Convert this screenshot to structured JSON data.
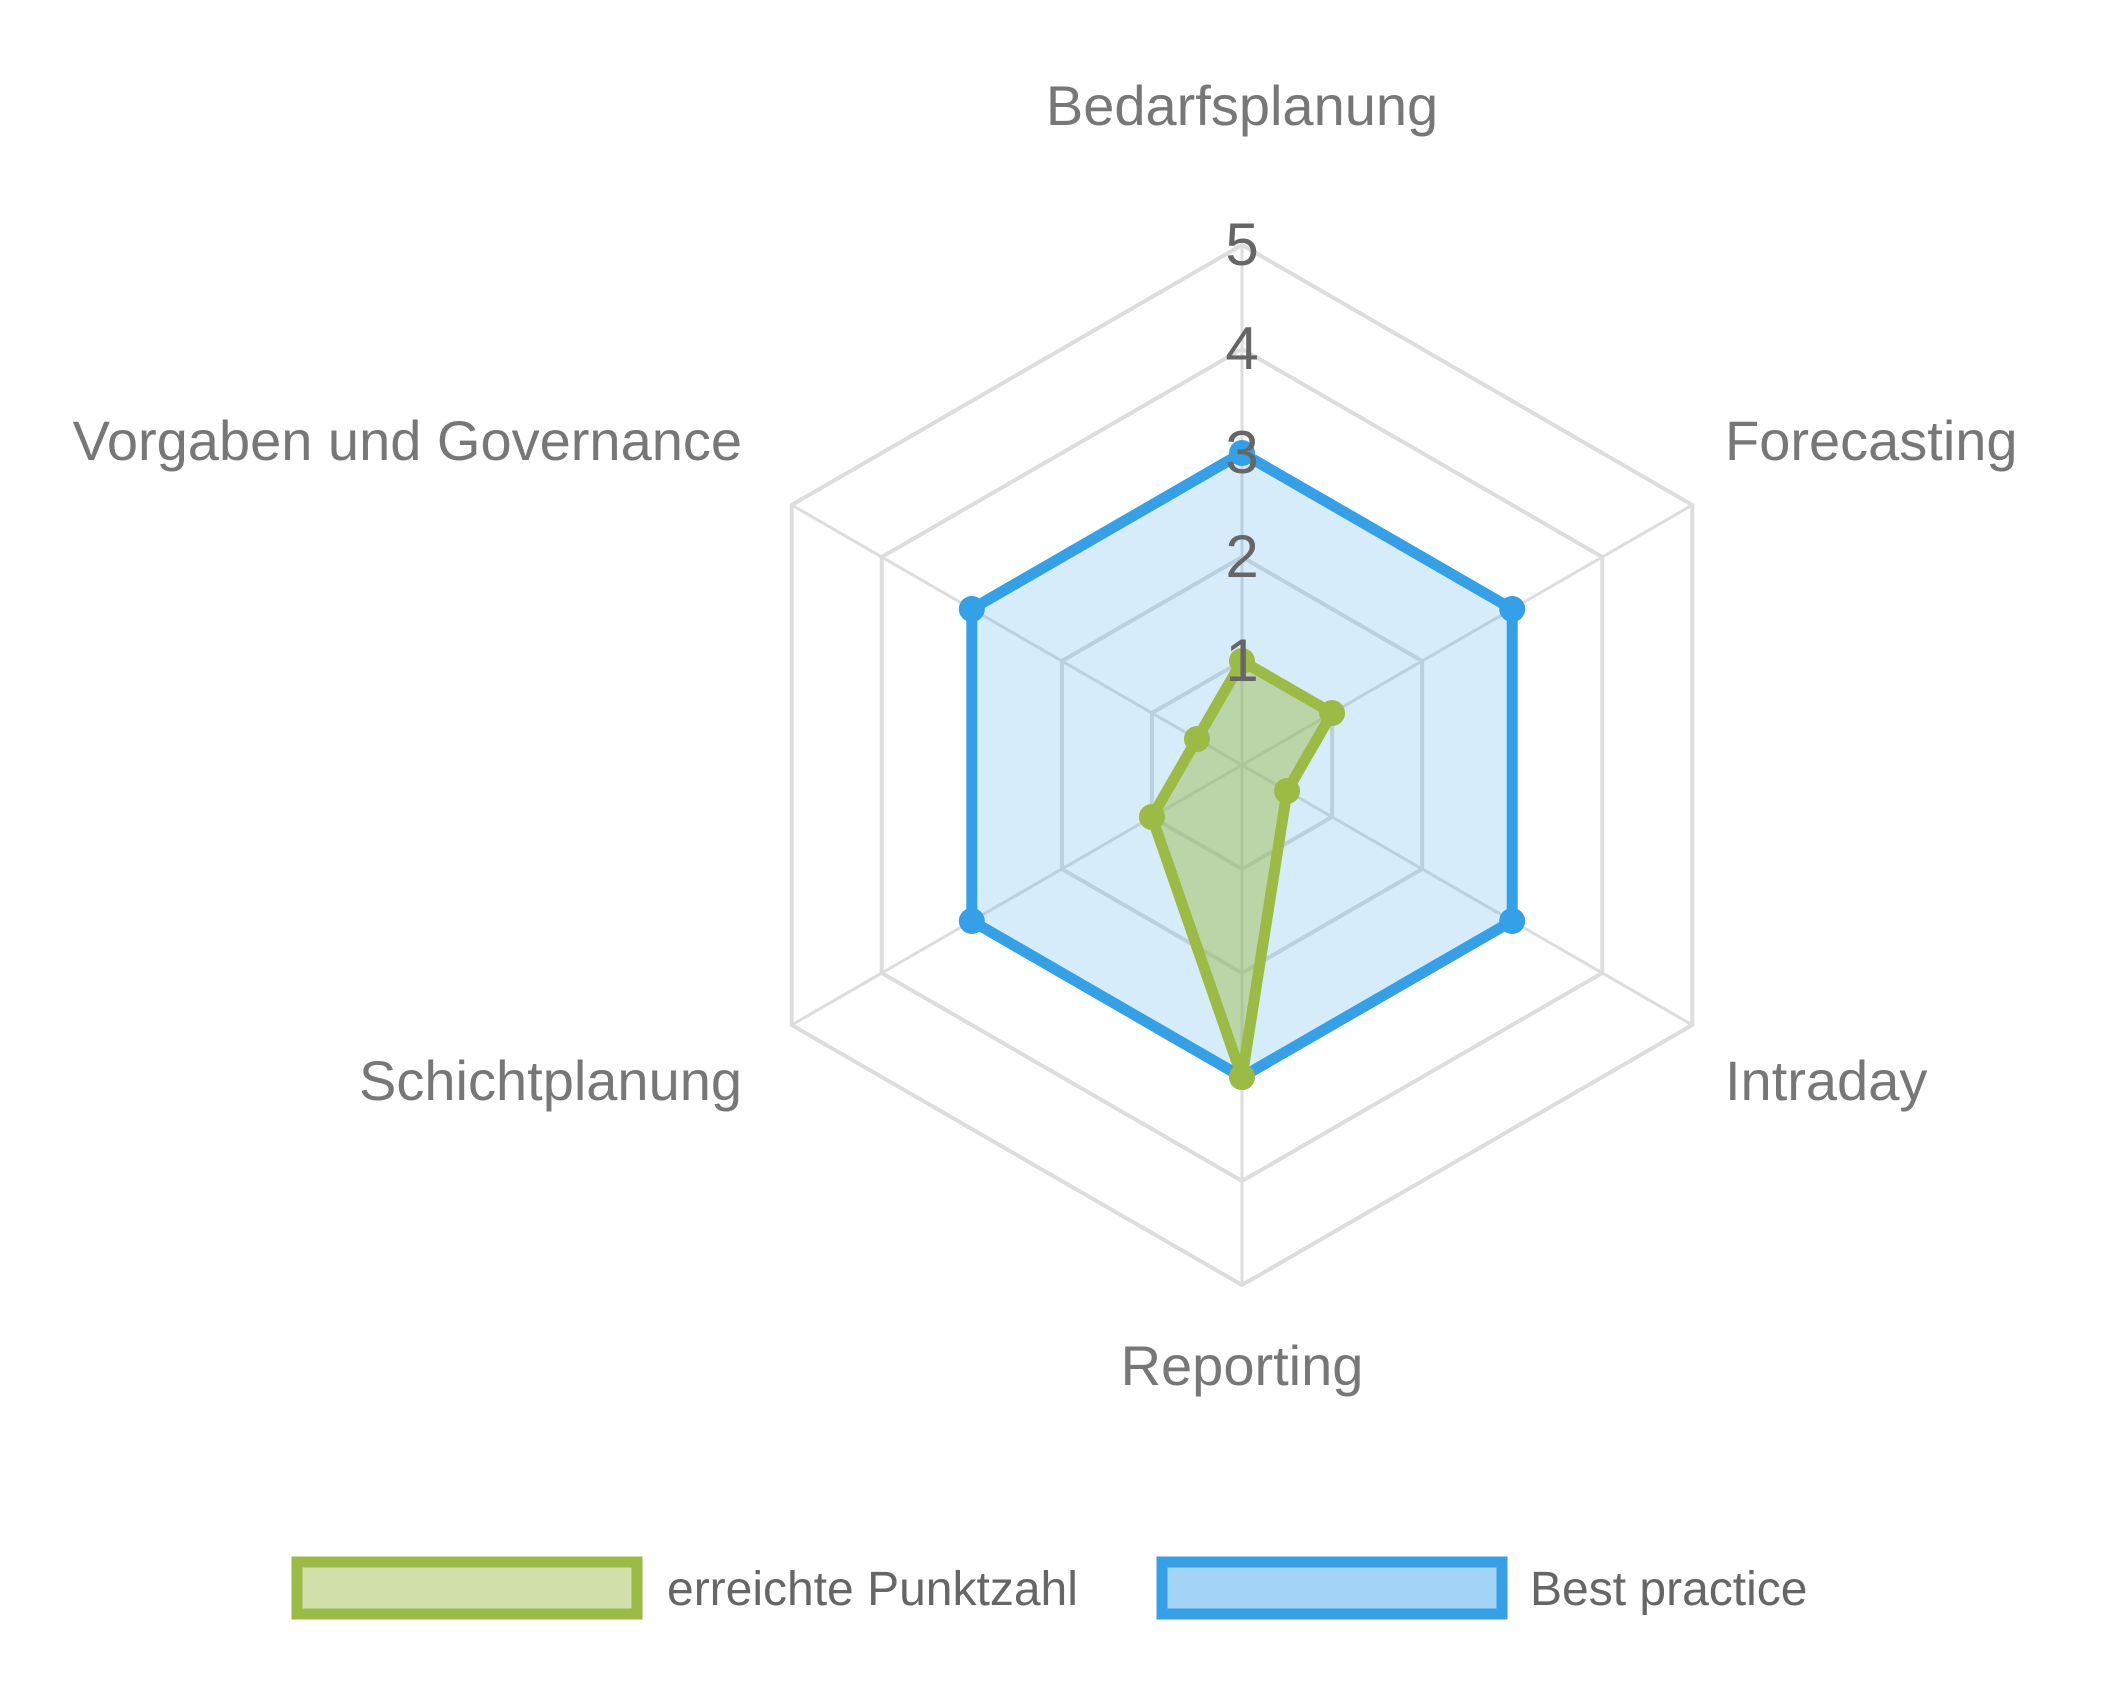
{
  "chart_data": {
    "type": "radar",
    "categories": [
      "Bedarfsplanung",
      "Forecasting",
      "Intraday",
      "Reporting",
      "Schichtplanung",
      "Vorgaben und Governance"
    ],
    "ticks": [
      "1",
      "2",
      "3",
      "4",
      "5"
    ],
    "rlim": [
      0,
      5
    ],
    "grid": true,
    "legend_position": "bottom",
    "series": [
      {
        "name": "erreichte Punktzahl",
        "values": [
          1,
          1,
          0.5,
          3,
          1,
          0.5
        ],
        "stroke": "#9bbb44",
        "fill": "#9bbb44"
      },
      {
        "name": "Best practice",
        "values": [
          3,
          3,
          3,
          3,
          3,
          3
        ],
        "stroke": "#33a0e8",
        "fill": "#33a0e8"
      }
    ]
  }
}
